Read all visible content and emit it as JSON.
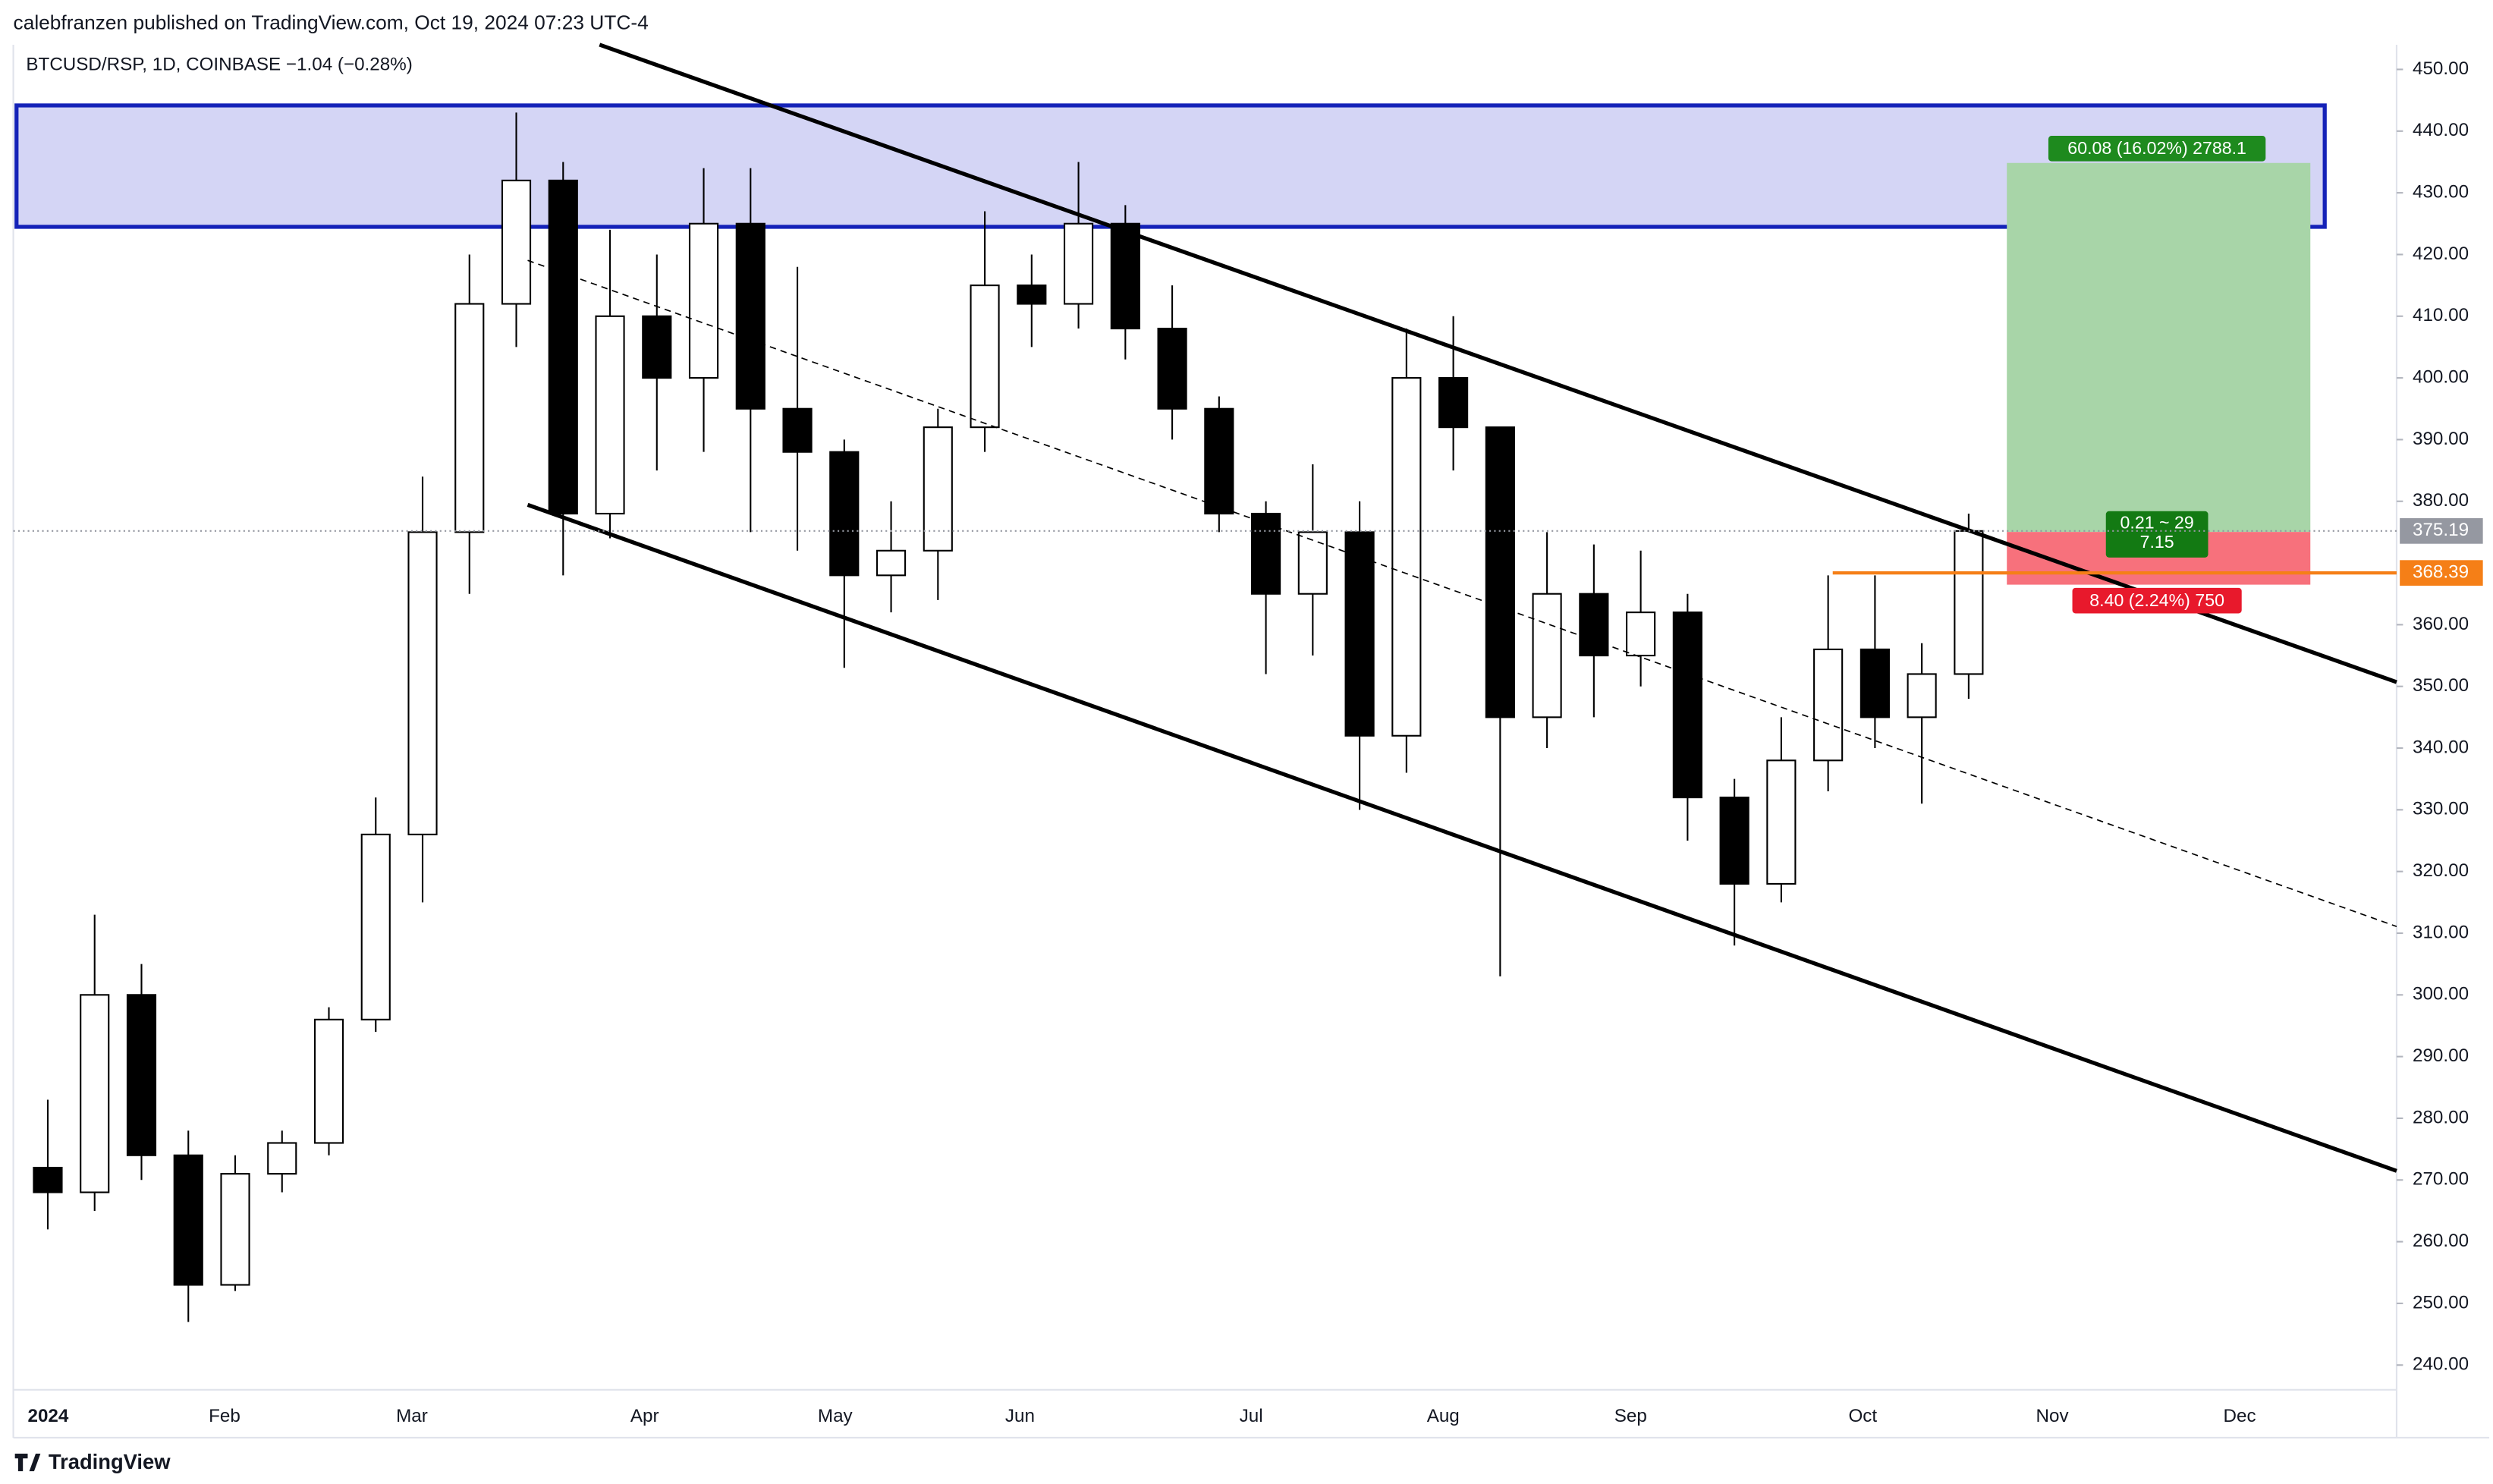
{
  "chart_data": {
    "type": "candlestick",
    "title": "calebfranzen published on TradingView.com, Oct 19, 2024 07:23 UTC-4",
    "subtitle": "BTCUSD/RSP, 1D, COINBASE  −1.04 (−0.28%)",
    "brand": "TradingView",
    "categories": [
      "2024",
      null,
      null,
      null,
      "Feb",
      null,
      null,
      null,
      "Mar",
      null,
      null,
      null,
      null,
      "Apr",
      null,
      null,
      null,
      "May",
      null,
      null,
      null,
      "Jun",
      null,
      null,
      null,
      null,
      "Jul",
      null,
      null,
      null,
      "Aug",
      null,
      null,
      null,
      "Sep",
      null,
      null,
      null,
      null,
      "Oct",
      null,
      null,
      null,
      "Nov",
      null,
      null,
      null,
      "Dec",
      null
    ],
    "open": [
      272,
      268,
      300,
      274,
      253,
      271,
      276,
      296,
      326,
      375,
      412,
      432,
      378,
      410,
      400,
      425,
      395,
      388,
      368,
      372,
      392,
      415,
      412,
      425,
      408,
      395,
      378,
      365,
      375,
      342,
      400,
      392,
      345,
      365,
      355,
      362,
      332,
      318,
      338,
      356,
      345,
      352,
      null,
      null,
      null,
      null,
      null,
      null,
      null
    ],
    "high": [
      283,
      313,
      305,
      278,
      274,
      278,
      298,
      332,
      384,
      420,
      443,
      435,
      424,
      420,
      434,
      434,
      418,
      390,
      380,
      395,
      427,
      420,
      435,
      428,
      415,
      397,
      380,
      386,
      380,
      408,
      410,
      392,
      375,
      373,
      372,
      365,
      335,
      345,
      368,
      368,
      357,
      378,
      null,
      null,
      null,
      null,
      null,
      null,
      null
    ],
    "low": [
      262,
      265,
      270,
      247,
      252,
      268,
      274,
      294,
      315,
      365,
      405,
      368,
      374,
      385,
      388,
      375,
      372,
      353,
      362,
      364,
      388,
      405,
      408,
      403,
      390,
      375,
      352,
      355,
      330,
      336,
      385,
      303,
      340,
      345,
      350,
      325,
      308,
      315,
      333,
      340,
      331,
      348,
      null,
      null,
      null,
      null,
      null,
      null,
      null
    ],
    "close": [
      268,
      300,
      274,
      253,
      271,
      276,
      296,
      326,
      375,
      412,
      432,
      378,
      410,
      400,
      425,
      395,
      388,
      368,
      372,
      392,
      415,
      412,
      425,
      408,
      395,
      378,
      365,
      375,
      342,
      400,
      392,
      345,
      365,
      355,
      362,
      332,
      318,
      338,
      356,
      345,
      352,
      375.19,
      null,
      null,
      null,
      null,
      null,
      null,
      null
    ],
    "ylim": [
      236,
      454
    ],
    "yticks": [
      {
        "value": 240,
        "label": "240.00"
      },
      {
        "value": 250,
        "label": "250.00"
      },
      {
        "value": 260,
        "label": "260.00"
      },
      {
        "value": 270,
        "label": "270.00"
      },
      {
        "value": 280,
        "label": "280.00"
      },
      {
        "value": 290,
        "label": "290.00"
      },
      {
        "value": 300,
        "label": "300.00"
      },
      {
        "value": 310,
        "label": "310.00"
      },
      {
        "value": 320,
        "label": "320.00"
      },
      {
        "value": 330,
        "label": "330.00"
      },
      {
        "value": 340,
        "label": "340.00"
      },
      {
        "value": 350,
        "label": "350.00"
      },
      {
        "value": 360,
        "label": "360.00"
      },
      {
        "value": 380,
        "label": "380.00"
      },
      {
        "value": 390,
        "label": "390.00"
      },
      {
        "value": 400,
        "label": "400.00"
      },
      {
        "value": 410,
        "label": "410.00"
      },
      {
        "value": 420,
        "label": "420.00"
      },
      {
        "value": 430,
        "label": "430.00"
      },
      {
        "value": 440,
        "label": "440.00"
      },
      {
        "value": 450,
        "label": "450.00"
      }
    ],
    "last_price": 375.19,
    "level": 368.39,
    "annotations": [
      "60.08 (16.02%) 2788.1",
      "0.21 ~ 29",
      "7.15",
      "8.40 (2.24%) 750"
    ]
  }
}
